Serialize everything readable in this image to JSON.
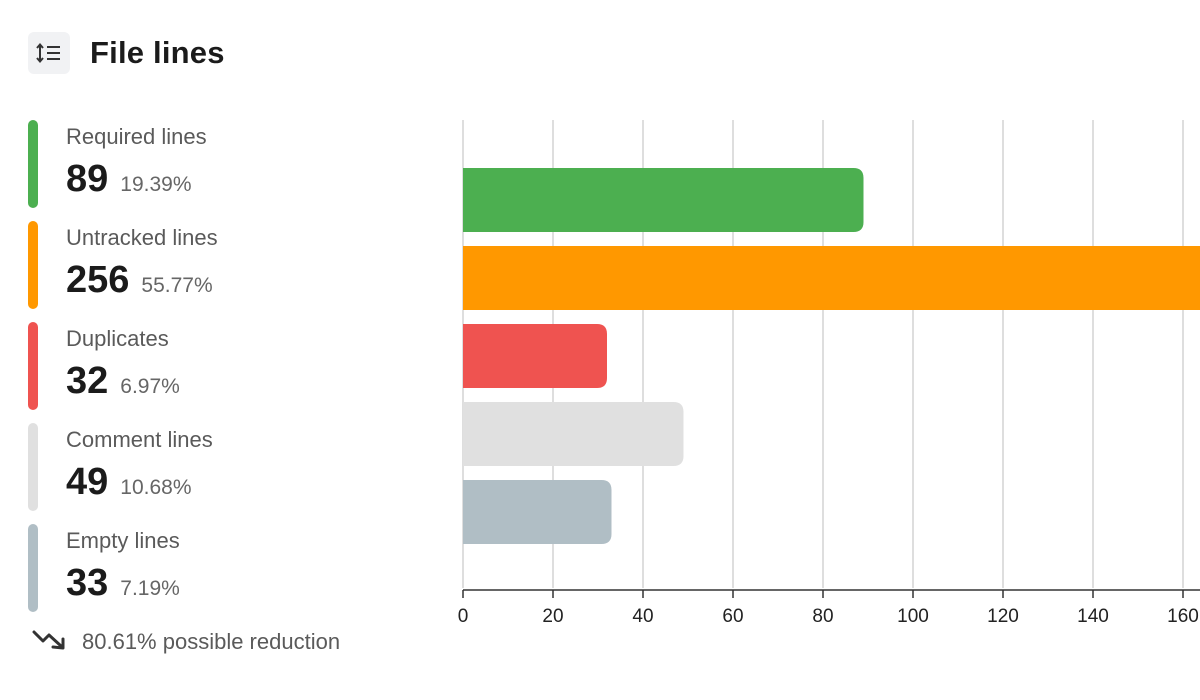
{
  "header": {
    "title": "File lines",
    "icon": "sort-lines-icon"
  },
  "legend": [
    {
      "label": "Required lines",
      "count": "89",
      "percent": "19.39%",
      "color": "#4caf50"
    },
    {
      "label": "Untracked lines",
      "count": "256",
      "percent": "55.77%",
      "color": "#ff9800"
    },
    {
      "label": "Duplicates",
      "count": "32",
      "percent": "6.97%",
      "color": "#ef5350"
    },
    {
      "label": "Comment lines",
      "count": "49",
      "percent": "10.68%",
      "color": "#e0e0e0"
    },
    {
      "label": "Empty lines",
      "count": "33",
      "percent": "7.19%",
      "color": "#b0bec5"
    }
  ],
  "footer": {
    "reduction_text": "80.61% possible reduction",
    "icon": "trending-down-icon"
  },
  "chart_data": {
    "type": "bar",
    "orientation": "horizontal",
    "categories": [
      "Required lines",
      "Untracked lines",
      "Duplicates",
      "Comment lines",
      "Empty lines"
    ],
    "values": [
      89,
      256,
      32,
      49,
      33
    ],
    "colors": [
      "#4caf50",
      "#ff9800",
      "#ef5350",
      "#e0e0e0",
      "#b0bec5"
    ],
    "xticks": [
      "0",
      "20",
      "40",
      "60",
      "80",
      "100",
      "120",
      "140",
      "160"
    ],
    "xlim": [
      0,
      256
    ],
    "grid": true
  }
}
